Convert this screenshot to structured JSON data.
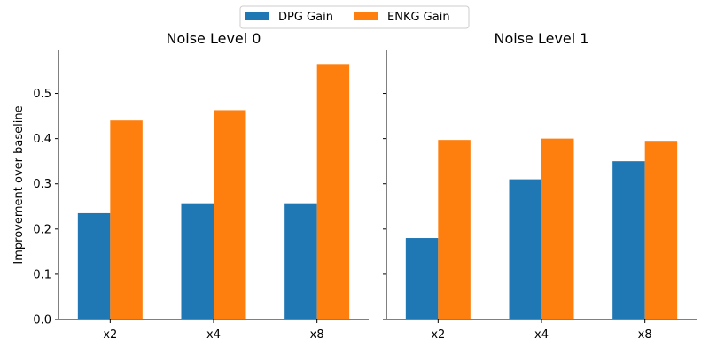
{
  "chart_data": {
    "type": "bar",
    "ylabel": "Improvement over baseline",
    "ylim": [
      0,
      0.595
    ],
    "yticks": [
      0.0,
      0.1,
      0.2,
      0.3,
      0.4,
      0.5
    ],
    "shared_y": true,
    "grid": false,
    "legend_placement": "top-center",
    "series_colors": {
      "DPG Gain": "#1f77b4",
      "ENKG Gain": "#ff7f0e"
    },
    "legend": [
      "DPG Gain",
      "ENKG Gain"
    ],
    "panels": [
      {
        "title": "Noise Level 0",
        "categories": [
          "x2",
          "x4",
          "x8"
        ],
        "series": [
          {
            "name": "DPG Gain",
            "values": [
              0.235,
              0.257,
              0.257
            ]
          },
          {
            "name": "ENKG Gain",
            "values": [
              0.44,
              0.463,
              0.565
            ]
          }
        ]
      },
      {
        "title": "Noise Level 1",
        "categories": [
          "x2",
          "x4",
          "x8"
        ],
        "series": [
          {
            "name": "DPG Gain",
            "values": [
              0.18,
              0.31,
              0.35
            ]
          },
          {
            "name": "ENKG Gain",
            "values": [
              0.397,
              0.4,
              0.395
            ]
          }
        ]
      }
    ]
  }
}
